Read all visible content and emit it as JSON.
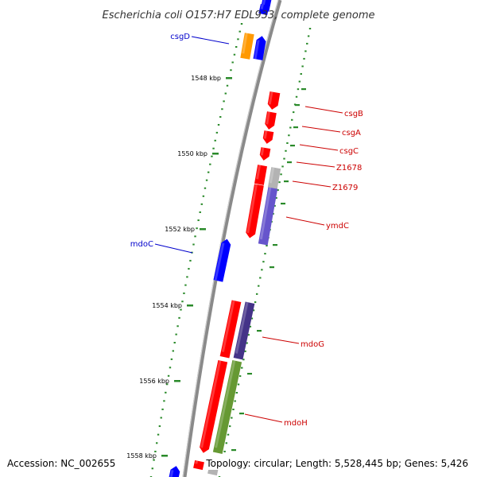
{
  "title": "Escherichia coli O157:H7 EDL933, complete genome",
  "footer": {
    "accession": "Accession: NC_002655",
    "topology": "Topology: circular; Length: 5,528,445 bp; Genes: 5,426"
  },
  "colors": {
    "forward_gene": "#ff0000",
    "reverse_gene": "#0000ff",
    "orange_gene": "#ff9900",
    "gray_gene": "#b3b3b3",
    "purple_gene": "#6655cc",
    "dark_purple_gene": "#443388",
    "olive_gene": "#669933",
    "backbone": "#888888",
    "tick": "#2a8a2a",
    "label_forward": "#cc0000",
    "label_reverse": "#0000cc"
  },
  "ticks": [
    {
      "label": "1548 kbp"
    },
    {
      "label": "1550 kbp"
    },
    {
      "label": "1552 kbp"
    },
    {
      "label": "1554 kbp"
    },
    {
      "label": "1556 kbp"
    },
    {
      "label": "1558 kbp"
    }
  ],
  "genes": [
    {
      "label": "csgD",
      "strand": "reverse"
    },
    {
      "label": "csgB",
      "strand": "forward"
    },
    {
      "label": "csgA",
      "strand": "forward"
    },
    {
      "label": "csgC",
      "strand": "forward"
    },
    {
      "label": "Z1678",
      "strand": "forward"
    },
    {
      "label": "Z1679",
      "strand": "forward"
    },
    {
      "label": "ymdC",
      "strand": "forward"
    },
    {
      "label": "mdoC",
      "strand": "reverse"
    },
    {
      "label": "mdoG",
      "strand": "forward"
    },
    {
      "label": "mdoH",
      "strand": "forward"
    }
  ]
}
